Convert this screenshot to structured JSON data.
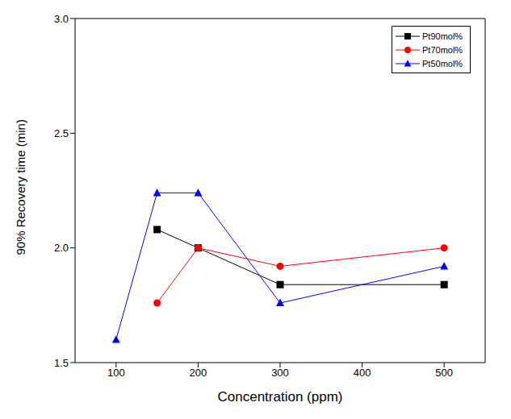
{
  "chart_data": {
    "type": "line",
    "x_label": "Concentration (ppm)",
    "y_label": "90% Recovery time (min)",
    "xlim": [
      50,
      550
    ],
    "xticks": [
      100,
      200,
      300,
      400,
      500
    ],
    "ylim": [
      1.5,
      3.0
    ],
    "yticks": [
      1.5,
      {
        "value": 2,
        "label": "2.0"
      },
      2.5,
      {
        "value": 3,
        "label": "3.0"
      }
    ],
    "grid": false,
    "legend": "upper right",
    "series": [
      {
        "name": "Pt90mol%",
        "color": "#000000",
        "marker": "square",
        "line_style": "solid",
        "x": [
          150,
          200,
          300,
          500
        ],
        "values": [
          2.08,
          2.0,
          1.84,
          1.84
        ]
      },
      {
        "name": "Pt70mol%",
        "color": "#ff0000",
        "marker": "circle",
        "line_style": "solid",
        "x": [
          150,
          200,
          300,
          500
        ],
        "values": [
          1.76,
          2.0,
          1.92,
          2.0
        ]
      },
      {
        "name": "Pt50mol%",
        "color": "#0000ff",
        "marker": "triangle",
        "line_style": "solid",
        "x": [
          100,
          150,
          200,
          300,
          500
        ],
        "values": [
          1.6,
          2.24,
          2.24,
          1.76,
          1.92
        ]
      }
    ]
  }
}
